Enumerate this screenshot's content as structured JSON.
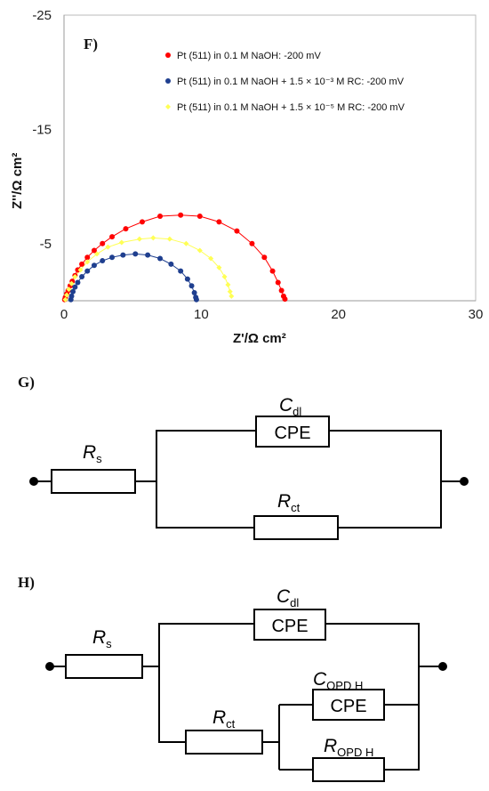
{
  "chart_data": {
    "type": "scatter",
    "panel_label": "F)",
    "xlabel": "Z'/Ω cm²",
    "ylabel": "Z''/Ω cm²",
    "xlim": [
      0,
      30
    ],
    "ylim": [
      0,
      -25
    ],
    "x_ticks": [
      0,
      10,
      20,
      30
    ],
    "y_ticks": [
      -5,
      -15,
      -25
    ],
    "legend_position": "top-right",
    "series": [
      {
        "name": "Pt (511)  in 0.1 M NaOH: -200 mV",
        "color": "#ff0000",
        "marker": "circle",
        "points": [
          [
            0.05,
            -0.1
          ],
          [
            0.1,
            -0.3
          ],
          [
            0.2,
            -0.6
          ],
          [
            0.3,
            -0.9
          ],
          [
            0.45,
            -1.3
          ],
          [
            0.6,
            -1.7
          ],
          [
            0.8,
            -2.2
          ],
          [
            1.0,
            -2.7
          ],
          [
            1.3,
            -3.2
          ],
          [
            1.7,
            -3.8
          ],
          [
            2.2,
            -4.4
          ],
          [
            2.8,
            -5.0
          ],
          [
            3.5,
            -5.6
          ],
          [
            4.5,
            -6.3
          ],
          [
            5.7,
            -6.9
          ],
          [
            7.0,
            -7.4
          ],
          [
            8.5,
            -7.5
          ],
          [
            9.9,
            -7.4
          ],
          [
            11.3,
            -6.9
          ],
          [
            12.6,
            -6.1
          ],
          [
            13.7,
            -5.0
          ],
          [
            14.6,
            -3.8
          ],
          [
            15.2,
            -2.6
          ],
          [
            15.6,
            -1.6
          ],
          [
            15.85,
            -0.9
          ],
          [
            16.0,
            -0.4
          ],
          [
            16.1,
            -0.15
          ]
        ]
      },
      {
        "name": "Pt (511) in 0.1 M NaOH + 1.5 × 10⁻³ M RC: -200 mV",
        "color": "#1f3f8f",
        "marker": "circle",
        "points": [
          [
            0.5,
            -0.1
          ],
          [
            0.55,
            -0.4
          ],
          [
            0.65,
            -0.8
          ],
          [
            0.8,
            -1.2
          ],
          [
            1.0,
            -1.6
          ],
          [
            1.3,
            -2.1
          ],
          [
            1.7,
            -2.6
          ],
          [
            2.2,
            -3.1
          ],
          [
            2.8,
            -3.5
          ],
          [
            3.5,
            -3.8
          ],
          [
            4.3,
            -4.0
          ],
          [
            5.2,
            -4.1
          ],
          [
            6.1,
            -4.0
          ],
          [
            7.0,
            -3.7
          ],
          [
            7.8,
            -3.2
          ],
          [
            8.5,
            -2.6
          ],
          [
            9.0,
            -1.9
          ],
          [
            9.3,
            -1.3
          ],
          [
            9.5,
            -0.7
          ],
          [
            9.6,
            -0.3
          ],
          [
            9.65,
            -0.1
          ]
        ]
      },
      {
        "name": "Pt (511) in 0.1 M NaOH + 1.5 × 10⁻⁵  M RC: -200 mV",
        "color": "#ffff55",
        "marker": "diamond",
        "points": [
          [
            0.1,
            -0.1
          ],
          [
            0.2,
            -0.5
          ],
          [
            0.35,
            -1.0
          ],
          [
            0.55,
            -1.5
          ],
          [
            0.8,
            -2.1
          ],
          [
            1.2,
            -2.7
          ],
          [
            1.7,
            -3.4
          ],
          [
            2.4,
            -4.1
          ],
          [
            3.2,
            -4.7
          ],
          [
            4.2,
            -5.1
          ],
          [
            5.5,
            -5.4
          ],
          [
            6.5,
            -5.5
          ],
          [
            7.7,
            -5.4
          ],
          [
            8.9,
            -5.0
          ],
          [
            9.9,
            -4.4
          ],
          [
            10.7,
            -3.7
          ],
          [
            11.3,
            -2.9
          ],
          [
            11.7,
            -2.1
          ],
          [
            11.95,
            -1.4
          ],
          [
            12.1,
            -0.8
          ],
          [
            12.2,
            -0.4
          ]
        ]
      }
    ]
  },
  "circuits": {
    "G": {
      "panel_label": "G)",
      "rs": {
        "main": "R",
        "sub": "s"
      },
      "cdl": {
        "main": "C",
        "sub": "dl"
      },
      "cpe": "CPE",
      "rct": {
        "main": "R",
        "sub": "ct"
      }
    },
    "H": {
      "panel_label": "H)",
      "rs": {
        "main": "R",
        "sub": "s"
      },
      "cdl": {
        "main": "C",
        "sub": "dl"
      },
      "cpe1": "CPE",
      "rct": {
        "main": "R",
        "sub": "ct"
      },
      "copd": {
        "main": "C",
        "sub": "OPD H"
      },
      "cpe2": "CPE",
      "ropd": {
        "main": "R",
        "sub": "OPD H"
      }
    }
  }
}
